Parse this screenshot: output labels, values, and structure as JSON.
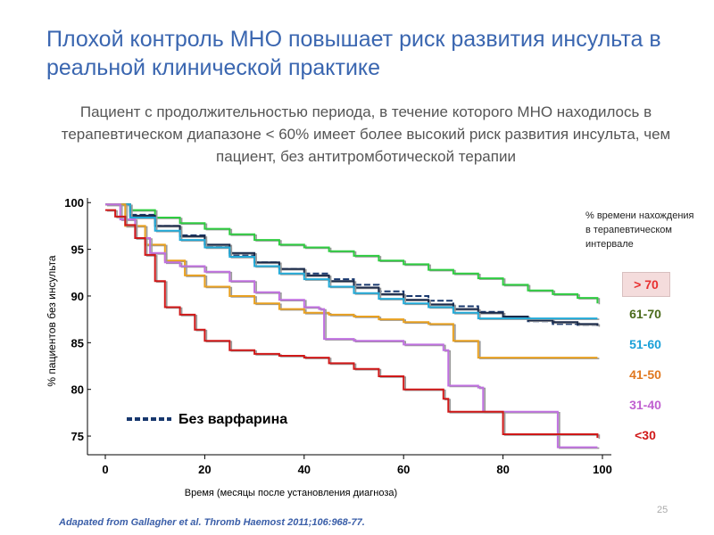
{
  "slide": {
    "title": "Плохой контроль МНО повышает риск развития инсульта в реальной клинической практике",
    "subtitle": "Пациент с продолжительностью периода, в течение которого МНО находилось в терапевтическом диапазоне < 60%  имеет более высокий риск развития инсульта, чем пациент, без антитромботической терапии",
    "footnote": "Adapated from Gallagher et al. Thromb Haemost 2011;106:968-77.",
    "page_number": "25"
  },
  "legend": {
    "title": "% времени нахождения в терапевтическом интервале",
    "no_warfarin_label": "Без варфарина"
  },
  "chart_data": {
    "type": "line",
    "xlabel": "Время (месяцы после установления диагноза)",
    "ylabel": "% пациентов     без инсульта",
    "xlim": [
      0,
      100
    ],
    "ylim": [
      73,
      100.5
    ],
    "x_ticks": [
      0,
      20,
      40,
      60,
      80,
      100
    ],
    "x_tick_labels": [
      "0",
      "20",
      "40",
      "60",
      "80",
      "100"
    ],
    "y_ticks": [
      75,
      80,
      85,
      90,
      95,
      100
    ],
    "y_tick_labels": [
      "75",
      "80",
      "85",
      "90",
      "95",
      "100"
    ],
    "grid": false,
    "legend_position": "right",
    "series": [
      {
        "name": "> 70",
        "color": "#e83030",
        "line_color": "#2ecc40",
        "boxed": true,
        "x": [
          0,
          5,
          10,
          15,
          20,
          25,
          30,
          35,
          40,
          45,
          50,
          55,
          60,
          65,
          70,
          75,
          80,
          85,
          90,
          95,
          99
        ],
        "y": [
          99.8,
          99.2,
          98.4,
          97.8,
          97.2,
          96.6,
          96.0,
          95.5,
          95.2,
          94.8,
          94.3,
          93.8,
          93.4,
          92.8,
          92.4,
          91.9,
          91.2,
          90.6,
          90.2,
          89.8,
          89.2
        ]
      },
      {
        "name": "61-70",
        "color": "#4a6a1a",
        "line_color": "#1a2a4a",
        "boxed": false,
        "x": [
          0,
          5,
          10,
          15,
          20,
          25,
          30,
          35,
          40,
          45,
          50,
          55,
          60,
          65,
          70,
          75,
          80,
          85,
          90,
          95,
          99
        ],
        "y": [
          99.8,
          98.6,
          97.5,
          96.4,
          95.5,
          94.6,
          93.6,
          92.9,
          92.2,
          91.6,
          90.9,
          90.2,
          89.6,
          89.1,
          88.6,
          88.2,
          87.8,
          87.4,
          87.2,
          87.0,
          86.8
        ]
      },
      {
        "name": "51-60",
        "color": "#1aa0d8",
        "line_color": "#22aad8",
        "boxed": false,
        "x": [
          0,
          5,
          10,
          15,
          20,
          25,
          30,
          35,
          40,
          45,
          50,
          55,
          60,
          65,
          70,
          75,
          80,
          85,
          90,
          95,
          99
        ],
        "y": [
          99.8,
          98.4,
          97.0,
          96.0,
          95.2,
          94.2,
          93.2,
          92.4,
          91.8,
          91.0,
          90.3,
          89.7,
          89.2,
          88.8,
          88.2,
          87.6,
          87.6,
          87.6,
          87.6,
          87.6,
          87.6
        ]
      },
      {
        "name": "41-50",
        "color": "#e07820",
        "line_color": "#e8a020",
        "boxed": false,
        "x": [
          0,
          4,
          8,
          12,
          16,
          20,
          25,
          30,
          35,
          40,
          45,
          50,
          55,
          60,
          65,
          70,
          74,
          75,
          80,
          90,
          99
        ],
        "y": [
          99.8,
          97.5,
          95.5,
          93.8,
          92.2,
          91.0,
          90.0,
          89.2,
          88.6,
          88.2,
          88.0,
          87.8,
          87.5,
          87.2,
          87.0,
          85.2,
          85.2,
          83.4,
          83.4,
          83.4,
          83.4
        ]
      },
      {
        "name": "31-40",
        "color": "#c060d0",
        "line_color": "#c070e0",
        "boxed": false,
        "x": [
          0,
          3,
          6,
          9,
          12,
          15,
          20,
          25,
          30,
          35,
          40,
          43,
          44,
          50,
          60,
          68,
          69,
          75,
          76,
          90,
          91,
          99
        ],
        "y": [
          99.8,
          98.2,
          96.2,
          94.6,
          93.6,
          93.2,
          92.6,
          91.6,
          90.4,
          89.6,
          88.8,
          88.6,
          85.4,
          85.2,
          84.8,
          84.2,
          80.4,
          80.2,
          77.6,
          77.6,
          73.8,
          73.8
        ]
      },
      {
        "name": "<30",
        "color": "#d01818",
        "line_color": "#d01818",
        "boxed": false,
        "x": [
          0,
          2,
          4,
          6,
          8,
          10,
          12,
          15,
          18,
          20,
          25,
          30,
          35,
          40,
          45,
          50,
          55,
          60,
          65,
          68,
          69,
          75,
          78,
          80,
          99
        ],
        "y": [
          99.2,
          98.5,
          97.6,
          96.2,
          94.4,
          91.6,
          88.8,
          88.0,
          86.4,
          85.2,
          84.2,
          83.8,
          83.6,
          83.4,
          82.8,
          82.2,
          81.4,
          80.0,
          80.0,
          79.0,
          77.6,
          77.6,
          77.6,
          75.2,
          74.8
        ]
      }
    ],
    "no_warfarin_series": {
      "color": "#18386e",
      "x": [
        0,
        5,
        10,
        15,
        20,
        25,
        30,
        35,
        40,
        45,
        50,
        55,
        60,
        65,
        70,
        75,
        80,
        85,
        90,
        95,
        99
      ],
      "y": [
        99.8,
        98.7,
        97.5,
        96.5,
        95.4,
        94.4,
        93.6,
        92.9,
        92.4,
        91.8,
        91.2,
        90.5,
        90.0,
        89.5,
        88.9,
        88.3,
        87.8,
        87.3,
        87.0,
        86.9,
        86.8
      ]
    }
  }
}
